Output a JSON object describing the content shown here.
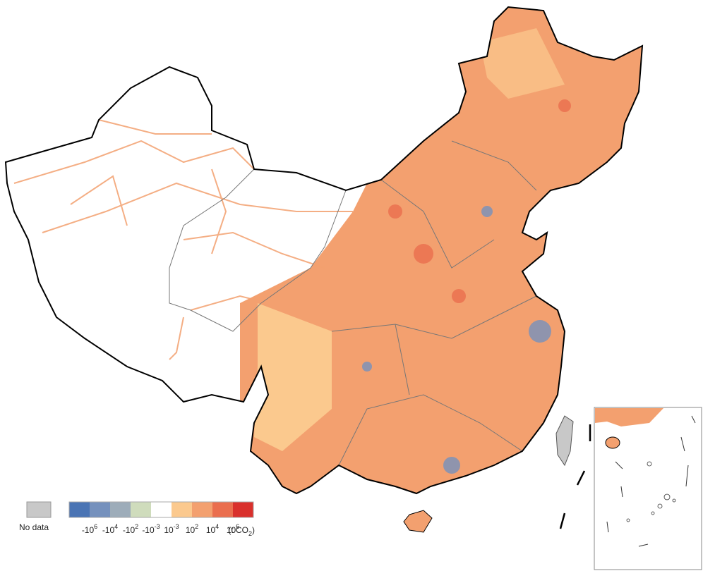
{
  "legend": {
    "no_data": {
      "label": "No data",
      "color": "#c8c8c8"
    },
    "bins": [
      {
        "color": "#4a74b4"
      },
      {
        "color": "#7591bd"
      },
      {
        "color": "#9dacb9"
      },
      {
        "color": "#cfdcbc"
      },
      {
        "color": "#ffffff"
      },
      {
        "color": "#fbc98e"
      },
      {
        "color": "#f3a06f"
      },
      {
        "color": "#ea6e4e"
      },
      {
        "color": "#d9302c"
      }
    ],
    "ticks": [
      {
        "base": "-10",
        "exponent": "6"
      },
      {
        "base": "-10",
        "exponent": "4"
      },
      {
        "base": "-10",
        "exponent": "2"
      },
      {
        "base": "-10",
        "exponent": "-3"
      },
      {
        "base": "10",
        "exponent": "-3"
      },
      {
        "base": "10",
        "exponent": "2"
      },
      {
        "base": "10",
        "exponent": "4"
      },
      {
        "base": "10",
        "exponent": "6"
      }
    ],
    "unit": {
      "prefix": "(t CO",
      "subscript": "2",
      "suffix": ")"
    }
  }
}
